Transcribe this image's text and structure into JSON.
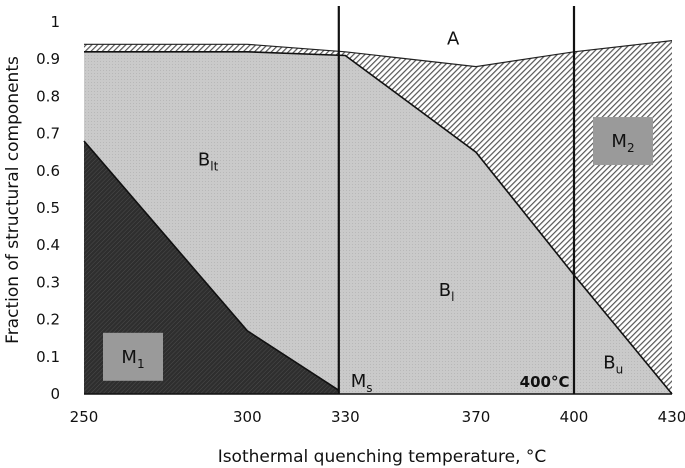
{
  "chart_data": {
    "type": "area",
    "xlabel": "Isothermal quenching temperature, °C",
    "ylabel": "Fraction of structural components",
    "xlim": [
      250,
      430
    ],
    "ylim": [
      0,
      1
    ],
    "x_ticks": [
      "250",
      "300",
      "330",
      "370",
      "400",
      "430"
    ],
    "x_tick_values": [
      250,
      300,
      330,
      370,
      400,
      430
    ],
    "y_ticks": [
      "0",
      "0.1",
      "0.2",
      "0.3",
      "0.4",
      "0.5",
      "0.6",
      "0.7",
      "0.8",
      "0.9",
      "1"
    ],
    "grid": false,
    "colors": {
      "M1": "#3a3a3a",
      "Bl": "#c8c8c8",
      "upper_hatch": "#5a5a5a",
      "label_box": "#9a9a9a",
      "A": "#ffffff"
    },
    "boundaries": {
      "M1_top": {
        "x": [
          250,
          300,
          328
        ],
        "y": [
          0.68,
          0.17,
          0.01
        ]
      },
      "B_top": {
        "x": [
          250,
          300,
          330,
          370,
          400,
          430
        ],
        "y": [
          0.92,
          0.92,
          0.91,
          0.65,
          0.32,
          0.0
        ]
      },
      "M2_top": {
        "x": [
          250,
          300,
          330,
          370,
          400,
          430
        ],
        "y": [
          0.94,
          0.94,
          0.92,
          0.88,
          0.92,
          0.95
        ]
      }
    },
    "vertical_lines": [
      328,
      400
    ],
    "regions": [
      {
        "base": "A",
        "sub": "",
        "x": 363,
        "y": 0.955,
        "boxed": false
      },
      {
        "base": "B",
        "sub": "lt",
        "x": 288,
        "y": 0.63,
        "boxed": false
      },
      {
        "base": "M",
        "sub": "2",
        "x": 415,
        "y": 0.68,
        "boxed": true
      },
      {
        "base": "B",
        "sub": "l",
        "x": 361,
        "y": 0.28,
        "boxed": false
      },
      {
        "base": "M",
        "sub": "1",
        "x": 265,
        "y": 0.1,
        "boxed": true
      },
      {
        "base": "M",
        "sub": "s",
        "x": 335,
        "y": 0.035,
        "boxed": false
      },
      {
        "base": "B",
        "sub": "u",
        "x": 412,
        "y": 0.085,
        "boxed": false
      }
    ],
    "annotations": [
      {
        "text": "400°C",
        "x": 391,
        "y": 0.035
      }
    ]
  }
}
